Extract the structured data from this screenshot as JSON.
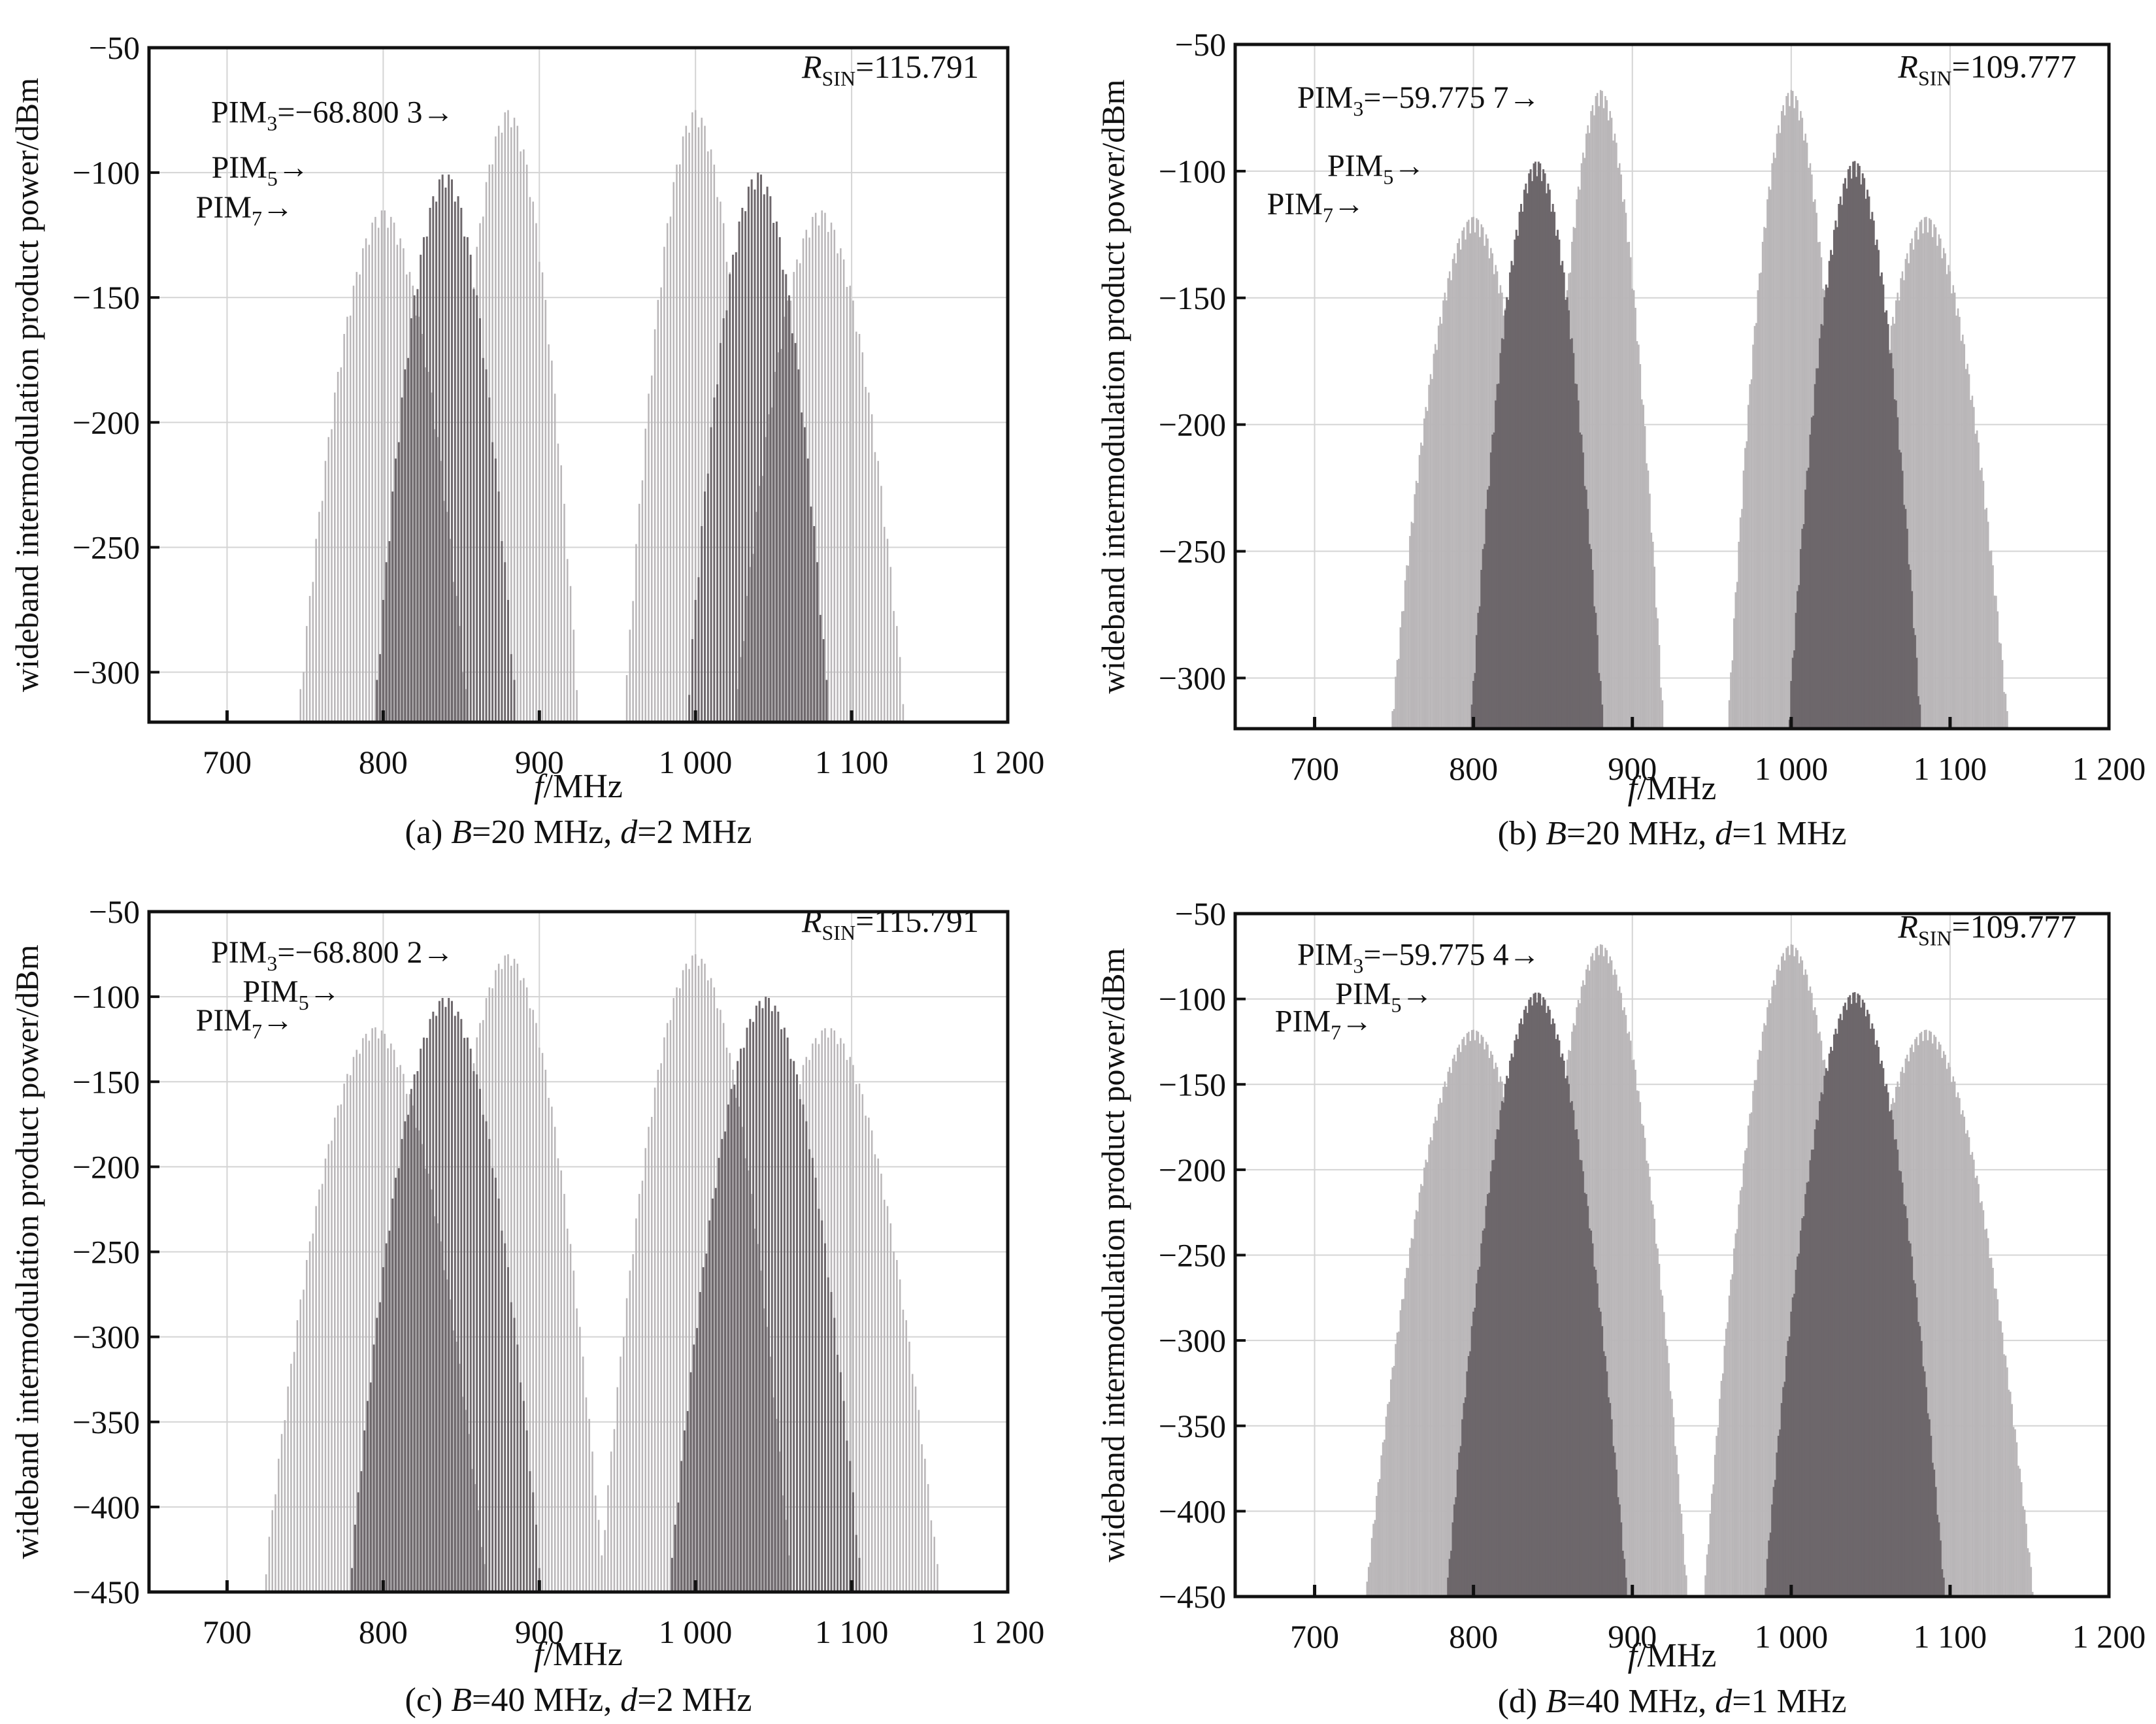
{
  "chart_data": [
    {
      "type": "bar",
      "panel": "a",
      "caption": {
        "pre": "(a) ",
        "B_label": "B",
        "B_value": "=20 MHz, ",
        "d_label": "d",
        "d_value": "=2 MHz"
      },
      "xlabel": {
        "var": "f",
        "unit": "/MHz"
      },
      "ylabel": "wideband intermodulation product power/dBm",
      "xlim": [
        650,
        1200
      ],
      "ylim": [
        -320,
        -50
      ],
      "xticks": [
        700,
        800,
        900,
        1000,
        1100,
        1200
      ],
      "xtick_labels": [
        "700",
        "800",
        "900",
        "1 000",
        "1 100",
        "1 200"
      ],
      "yticks": [
        -50,
        -100,
        -150,
        -200,
        -250,
        -300
      ],
      "yticks_labels": [
        "−50",
        "−100",
        "−150",
        "−200",
        "−250",
        "−300"
      ],
      "grid": true,
      "annotations": {
        "pim3": {
          "base": "PIM",
          "sub": "3",
          "text": "=−68.800 3→"
        },
        "pim5": {
          "base": "PIM",
          "sub": "5",
          "text": "→"
        },
        "pim7": {
          "base": "PIM",
          "sub": "7",
          "text": "→"
        },
        "rsin": {
          "base": "R",
          "sub": "SIN",
          "text": "=115.791"
        }
      },
      "series": [
        {
          "name": "PIM3",
          "shade": "light",
          "center": 880,
          "peak": -75,
          "halfwidth": 46,
          "step": 2
        },
        {
          "name": "PIM3",
          "shade": "light",
          "center": 1000,
          "peak": -75,
          "halfwidth": 46,
          "step": 2
        },
        {
          "name": "PIM5",
          "shade": "dark",
          "center": 840,
          "peak": -100,
          "halfwidth": 46,
          "step": 2
        },
        {
          "name": "PIM5",
          "shade": "dark",
          "center": 1040,
          "peak": -100,
          "halfwidth": 46,
          "step": 2
        },
        {
          "name": "PIM7",
          "shade": "light",
          "center": 800,
          "peak": -115,
          "halfwidth": 55,
          "step": 2
        },
        {
          "name": "PIM7",
          "shade": "light",
          "center": 1080,
          "peak": -115,
          "halfwidth": 55,
          "step": 2
        }
      ]
    },
    {
      "type": "bar",
      "panel": "b",
      "caption": {
        "pre": "(b) ",
        "B_label": "B",
        "B_value": "=20 MHz, ",
        "d_label": "d",
        "d_value": "=1 MHz"
      },
      "xlabel": {
        "var": "f",
        "unit": "/MHz"
      },
      "ylabel": "wideband intermodulation product power/dBm",
      "xlim": [
        650,
        1200
      ],
      "ylim": [
        -320,
        -50
      ],
      "xticks": [
        700,
        800,
        900,
        1000,
        1100,
        1200
      ],
      "xtick_labels": [
        "700",
        "800",
        "900",
        "1 000",
        "1 100",
        "1 200"
      ],
      "yticks": [
        -50,
        -100,
        -150,
        -200,
        -250,
        -300
      ],
      "yticks_labels": [
        "−50",
        "−100",
        "−150",
        "−200",
        "−250",
        "−300"
      ],
      "grid": true,
      "annotations": {
        "pim3": {
          "base": "PIM",
          "sub": "3",
          "text": "=−59.775 7→"
        },
        "pim5": {
          "base": "PIM",
          "sub": "5",
          "text": "→"
        },
        "pim7": {
          "base": "PIM",
          "sub": "7",
          "text": "→"
        },
        "rsin": {
          "base": "R",
          "sub": "SIN",
          "text": "=109.777"
        }
      },
      "series": [
        {
          "name": "PIM3",
          "shade": "light",
          "center": 880,
          "peak": -68,
          "halfwidth": 40,
          "step": 1
        },
        {
          "name": "PIM3",
          "shade": "light",
          "center": 1000,
          "peak": -68,
          "halfwidth": 40,
          "step": 1
        },
        {
          "name": "PIM5",
          "shade": "dark",
          "center": 840,
          "peak": -96,
          "halfwidth": 42,
          "step": 1
        },
        {
          "name": "PIM5",
          "shade": "dark",
          "center": 1040,
          "peak": -96,
          "halfwidth": 42,
          "step": 1
        },
        {
          "name": "PIM7",
          "shade": "light",
          "center": 800,
          "peak": -118,
          "halfwidth": 52,
          "step": 1
        },
        {
          "name": "PIM7",
          "shade": "light",
          "center": 1085,
          "peak": -118,
          "halfwidth": 52,
          "step": 1
        }
      ]
    },
    {
      "type": "bar",
      "panel": "c",
      "caption": {
        "pre": "(c) ",
        "B_label": "B",
        "B_value": "=40 MHz, ",
        "d_label": "d",
        "d_value": "=2 MHz"
      },
      "xlabel": {
        "var": "f",
        "unit": "/MHz"
      },
      "ylabel": "wideband intermodulation product power/dBm",
      "xlim": [
        650,
        1200
      ],
      "ylim": [
        -450,
        -50
      ],
      "xticks": [
        700,
        800,
        900,
        1000,
        1100,
        1200
      ],
      "xtick_labels": [
        "700",
        "800",
        "900",
        "1 000",
        "1 100",
        "1 200"
      ],
      "yticks": [
        -50,
        -100,
        -150,
        -200,
        -250,
        -300,
        -350,
        -400,
        -450
      ],
      "yticks_labels": [
        "−50",
        "−100",
        "−150",
        "−200",
        "−250",
        "−300",
        "−350",
        "−400",
        "−450"
      ],
      "grid": true,
      "annotations": {
        "pim3": {
          "base": "PIM",
          "sub": "3",
          "text": "=−68.800 2→"
        },
        "pim5": {
          "base": "PIM",
          "sub": "5",
          "text": "→"
        },
        "pim7": {
          "base": "PIM",
          "sub": "7",
          "text": "→"
        },
        "rsin": {
          "base": "R",
          "sub": "SIN",
          "text": "=115.791"
        }
      },
      "series": [
        {
          "name": "PIM3",
          "shade": "light",
          "center": 880,
          "peak": -75,
          "halfwidth": 62,
          "step": 2
        },
        {
          "name": "PIM3",
          "shade": "light",
          "center": 1000,
          "peak": -75,
          "halfwidth": 62,
          "step": 2
        },
        {
          "name": "PIM5",
          "shade": "dark",
          "center": 840,
          "peak": -100,
          "halfwidth": 62,
          "step": 2
        },
        {
          "name": "PIM5",
          "shade": "dark",
          "center": 1045,
          "peak": -100,
          "halfwidth": 62,
          "step": 2
        },
        {
          "name": "PIM7",
          "shade": "light",
          "center": 795,
          "peak": -118,
          "halfwidth": 72,
          "step": 2
        },
        {
          "name": "PIM7",
          "shade": "light",
          "center": 1085,
          "peak": -118,
          "halfwidth": 72,
          "step": 2
        }
      ]
    },
    {
      "type": "bar",
      "panel": "d",
      "caption": {
        "pre": "(d) ",
        "B_label": "B",
        "B_value": "=40 MHz, ",
        "d_label": "d",
        "d_value": "=1 MHz"
      },
      "xlabel": {
        "var": "f",
        "unit": "/MHz"
      },
      "ylabel": "wideband intermodulation product power/dBm",
      "xlim": [
        650,
        1200
      ],
      "ylim": [
        -450,
        -50
      ],
      "xticks": [
        700,
        800,
        900,
        1000,
        1100,
        1200
      ],
      "xtick_labels": [
        "700",
        "800",
        "900",
        "1 000",
        "1 100",
        "1 200"
      ],
      "yticks": [
        -50,
        -100,
        -150,
        -200,
        -250,
        -300,
        -350,
        -400,
        -450
      ],
      "yticks_labels": [
        "−50",
        "−100",
        "−150",
        "−200",
        "−250",
        "−300",
        "−350",
        "−400",
        "−450"
      ],
      "grid": true,
      "annotations": {
        "pim3": {
          "base": "PIM",
          "sub": "3",
          "text": "=−59.775 4→"
        },
        "pim5": {
          "base": "PIM",
          "sub": "5",
          "text": "→"
        },
        "pim7": {
          "base": "PIM",
          "sub": "7",
          "text": "→"
        },
        "rsin": {
          "base": "R",
          "sub": "SIN",
          "text": "=109.777"
        }
      },
      "series": [
        {
          "name": "PIM3",
          "shade": "light",
          "center": 880,
          "peak": -68,
          "halfwidth": 55,
          "step": 1
        },
        {
          "name": "PIM3",
          "shade": "light",
          "center": 1000,
          "peak": -68,
          "halfwidth": 55,
          "step": 1
        },
        {
          "name": "PIM5",
          "shade": "dark",
          "center": 840,
          "peak": -96,
          "halfwidth": 57,
          "step": 1
        },
        {
          "name": "PIM5",
          "shade": "dark",
          "center": 1040,
          "peak": -96,
          "halfwidth": 57,
          "step": 1
        },
        {
          "name": "PIM7",
          "shade": "light",
          "center": 800,
          "peak": -118,
          "halfwidth": 68,
          "step": 1
        },
        {
          "name": "PIM7",
          "shade": "light",
          "center": 1085,
          "peak": -118,
          "halfwidth": 68,
          "step": 1
        }
      ]
    }
  ],
  "colors": {
    "light": "#b9b6b8",
    "dark": "#6d676b",
    "grid": "#d4d4d4",
    "axis": "#111111"
  }
}
